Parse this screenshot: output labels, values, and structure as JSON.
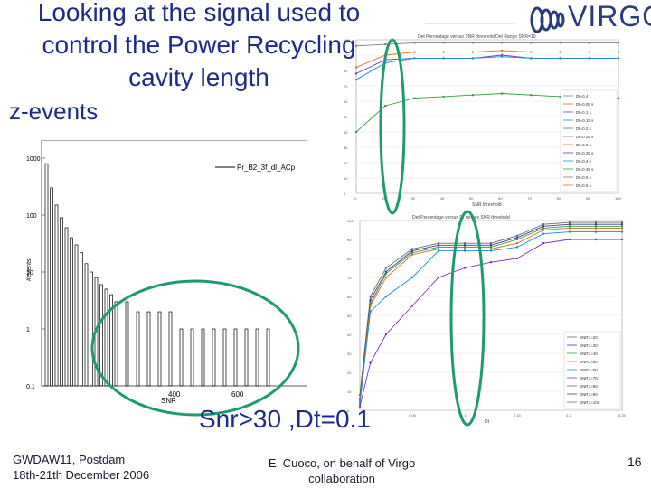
{
  "slide": {
    "title_lines": [
      "Looking at the signal used to",
      "control the Power Recycling",
      "cavity length"
    ],
    "subtitle": "z-events",
    "annotation": "Snr>30 ,Dt=0.1",
    "footer_left_line1": "GWDAW11,  Postdam",
    "footer_left_line2": "18th-21th December 2006",
    "footer_mid_line1": "E. Cuoco, on behalf of Virgo",
    "footer_mid_line2": "collaboration",
    "page_number": "16",
    "logo_text": "VIRGO"
  },
  "colors": {
    "title": "#1d2a8a",
    "highlight_ring": "#1e9b6e",
    "logo": "#2a3a80"
  },
  "histogram": {
    "legend": "Pr_B2_3f_dl_ACp",
    "ylabel": "#events",
    "xlabel": "SNR",
    "yticks": [
      "1000",
      "100",
      "10",
      "1",
      "0.1"
    ],
    "xticks": [
      "400",
      "600"
    ],
    "bars": [
      800,
      300,
      150,
      90,
      60,
      40,
      30,
      22,
      14,
      10,
      8,
      6,
      5,
      4,
      3,
      3,
      2,
      2,
      2,
      2,
      1,
      1,
      1,
      1,
      1,
      1,
      1,
      1,
      1
    ]
  },
  "top_plot": {
    "title": "Det Percentage versus SNR threshold Det Range SNR=10",
    "xlabel": "SNR threshold",
    "ylabel": "Det Percentage",
    "xticks": [
      "10",
      "20",
      "30",
      "40",
      "50",
      "60",
      "70",
      "80",
      "90",
      "100"
    ],
    "legend": [
      "Dt=0.4",
      "Dt=0.05 s",
      "Dt=0.1 s",
      "Dt=0.15 s",
      "Dt=0.2 s",
      "Dt=0.25 s",
      "Dt=0.3 s",
      "Dt=0.35 s",
      "Dt=0.4 s",
      "Dt=0.45 s",
      "Dt=0.5 s",
      "Dt=0.5 s"
    ],
    "series": [
      {
        "color": "#7d7d7d",
        "values": [
          96,
          97,
          98,
          98,
          98,
          98,
          98,
          98,
          98,
          98
        ]
      },
      {
        "color": "#e07020",
        "values": [
          82,
          90,
          92,
          92,
          92,
          93,
          92,
          92,
          92,
          92
        ]
      },
      {
        "color": "#6a3fbf",
        "values": [
          78,
          87,
          88,
          88,
          88,
          90,
          88,
          88,
          88,
          88
        ]
      },
      {
        "color": "#1e8fcf",
        "values": [
          74,
          85,
          88,
          88,
          88,
          89,
          88,
          88,
          88,
          88
        ]
      },
      {
        "color": "#2e9e3e",
        "values": [
          40,
          57,
          62,
          63,
          64,
          65,
          64,
          63,
          63,
          62
        ]
      }
    ]
  },
  "bottom_plot": {
    "title": "Det Percentage versus Dt ranges SNR threshold",
    "xlabel": "Dt",
    "ylabel": "Det Percentage",
    "xticks": [
      "0.05",
      "0.1",
      "0.15",
      "0.2",
      "0.25"
    ],
    "legend": [
      "SNR>=20",
      "SNR>=30",
      "SNR>=40",
      "SNR>=50",
      "SNR>=60",
      "SNR>=70",
      "SNR>=80",
      "SNR>=90",
      "SNR>=100"
    ],
    "x": [
      0,
      0.01,
      0.025,
      0.05,
      0.075,
      0.1,
      0.125,
      0.15,
      0.175,
      0.2,
      0.225,
      0.25
    ],
    "series": [
      {
        "color": "#6a6a6a",
        "values": [
          8,
          60,
          75,
          85,
          88,
          88,
          88,
          92,
          98,
          99,
          99,
          99
        ]
      },
      {
        "color": "#3a3aa0",
        "values": [
          6,
          58,
          73,
          84,
          87,
          87,
          87,
          91,
          97,
          98,
          98,
          98
        ]
      },
      {
        "color": "#2e9e3e",
        "values": [
          5,
          56,
          72,
          83,
          86,
          86,
          86,
          90,
          96,
          97,
          97,
          97
        ]
      },
      {
        "color": "#e07020",
        "values": [
          4,
          55,
          70,
          82,
          85,
          85,
          85,
          88,
          95,
          96,
          96,
          96
        ]
      },
      {
        "color": "#1e8fcf",
        "values": [
          3,
          52,
          60,
          70,
          84,
          84,
          84,
          86,
          93,
          94,
          94,
          94
        ]
      },
      {
        "color": "#7a2fbf",
        "values": [
          2,
          25,
          40,
          55,
          70,
          75,
          78,
          80,
          88,
          90,
          90,
          90
        ]
      }
    ]
  }
}
